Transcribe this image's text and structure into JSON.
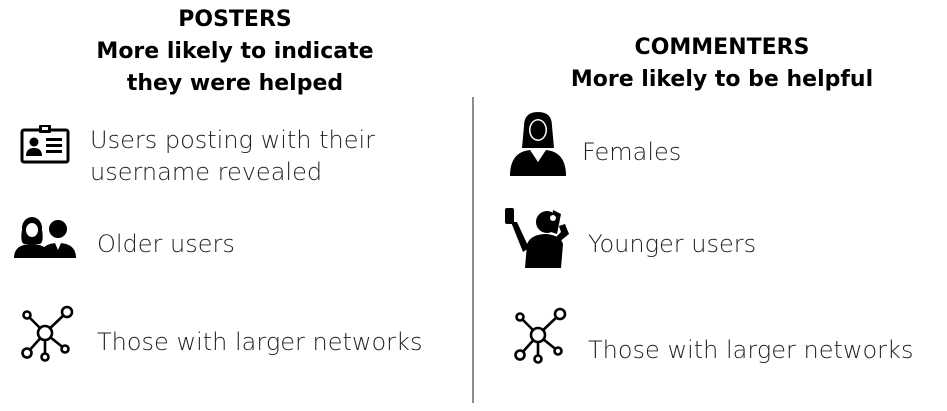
{
  "posters": {
    "heading_line1": "POSTERS",
    "heading_line2": "More likely to indicate",
    "heading_line3": "they were helped",
    "items": [
      {
        "icon": "id-card-icon",
        "text_line1": "Users posting with their",
        "text_line2": "username revealed"
      },
      {
        "icon": "people-pair-icon",
        "text_line1": "Older users"
      },
      {
        "icon": "network-icon",
        "text_line1": "Those with larger networks"
      }
    ]
  },
  "commenters": {
    "heading_line1": "COMMENTERS",
    "heading_line2": "More likely to be helpful",
    "items": [
      {
        "icon": "woman-icon",
        "text_line1": "Females"
      },
      {
        "icon": "selfie-person-icon",
        "text_line1": "Younger users"
      },
      {
        "icon": "network-icon",
        "text_line1": "Those with larger networks"
      }
    ]
  }
}
